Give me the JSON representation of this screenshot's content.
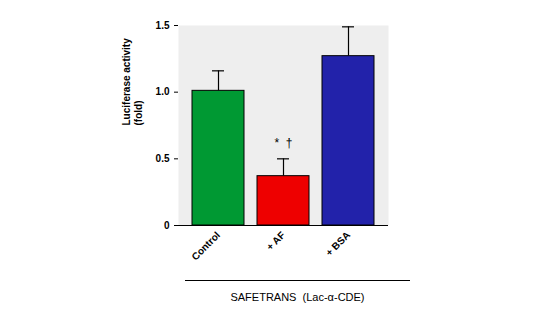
{
  "chart_data": {
    "type": "bar",
    "categories": [
      "Control",
      "+ AF",
      "+ BSA"
    ],
    "values": [
      1.01,
      0.37,
      1.27
    ],
    "errors": [
      0.15,
      0.13,
      0.22
    ],
    "colors": [
      "#009933",
      "#ee0000",
      "#2222aa"
    ],
    "y_label": "Luciferase activity\n(fold)",
    "ylim": [
      0,
      1.5
    ],
    "yticks": [
      0,
      0.5,
      {
        "value": 1,
        "label": "1.0"
      },
      {
        "value": 1.5,
        "label": "1.5"
      }
    ],
    "annotations": [
      {
        "category": "+ AF",
        "text": "*  †"
      }
    ],
    "group_label": "SAFETRANS  (Lac-α-CDE)",
    "grid": false
  }
}
